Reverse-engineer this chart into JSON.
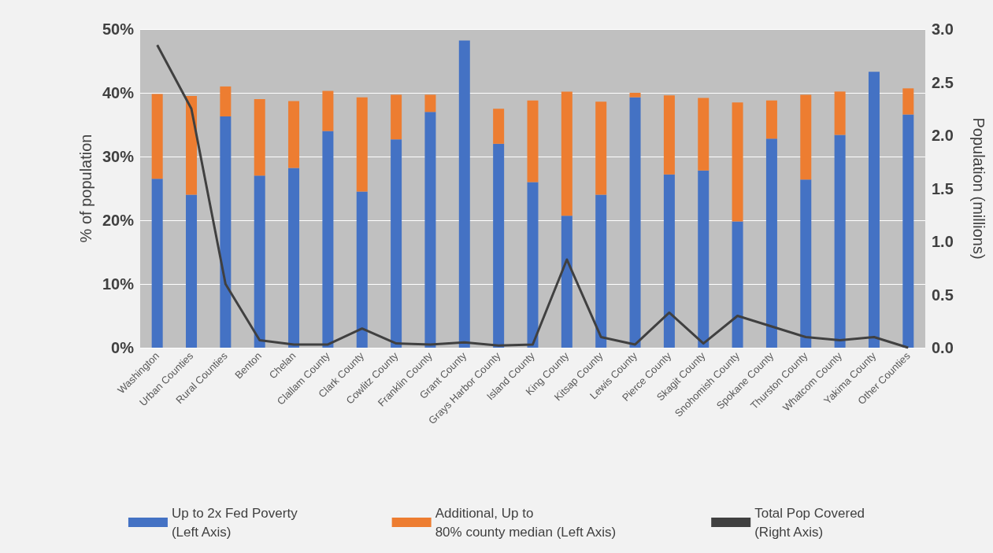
{
  "chart_data": {
    "type": "bar",
    "stacked": true,
    "ylabel": "% of population",
    "y2label": "Population (millions)",
    "categories": [
      "Washington",
      "Urban Counties",
      "Rural Counties",
      "Benton",
      "Chelan",
      "Clallam County",
      "Clark County",
      "Cowlitz County",
      "Franklin County",
      "Grant County",
      "Grays Harbor County",
      "Island County",
      "King County",
      "Kitsap County",
      "Lewis County",
      "Pierce County",
      "Skagit County",
      "Snohomish County",
      "Spokane County",
      "Thurston County",
      "Whatcom County",
      "Yakima County",
      "Other Counties"
    ],
    "series": [
      {
        "name": "Up to 2x Fed Poverty\n(Left Axis)",
        "color": "#4472c4",
        "values": [
          26.5,
          24,
          36.3,
          27,
          28.2,
          34,
          24.5,
          32.7,
          37,
          48.2,
          32,
          26,
          20.7,
          24,
          39.3,
          27.2,
          27.8,
          19.8,
          32.8,
          26.4,
          33.4,
          43.3,
          36.6
        ]
      },
      {
        "name": "Additional, Up to\n80% county median (Left Axis)",
        "color": "#ed7d31",
        "values": [
          13.3,
          15.5,
          4.7,
          12,
          10.5,
          6.3,
          14.8,
          7,
          2.7,
          0,
          5.5,
          12.8,
          19.5,
          14.6,
          0.7,
          12.4,
          11.4,
          18.7,
          6,
          13.3,
          6.8,
          0,
          4.1
        ]
      },
      {
        "name": "Total Pop Covered\n(Right Axis)",
        "type": "line",
        "axis": "y2",
        "color": "#404040",
        "values": [
          2.85,
          2.25,
          0.6,
          0.07,
          0.03,
          0.03,
          0.18,
          0.04,
          0.03,
          0.05,
          0.02,
          0.03,
          0.83,
          0.1,
          0.03,
          0.33,
          0.04,
          0.3,
          0.2,
          0.1,
          0.07,
          0.1,
          0.0
        ]
      }
    ],
    "ylim": [
      0,
      50
    ],
    "yticks": [
      {
        "value": 0,
        "label": "0%"
      },
      {
        "value": 10,
        "label": "10%"
      },
      {
        "value": 20,
        "label": "20%"
      },
      {
        "value": 30,
        "label": "30%"
      },
      {
        "value": 40,
        "label": "40%"
      },
      {
        "value": 50,
        "label": "50%"
      }
    ],
    "y2lim": [
      0,
      3
    ],
    "y2ticks": [
      {
        "value": 0,
        "label": "0.0"
      },
      {
        "value": 0.5,
        "label": "0.5"
      },
      {
        "value": 1,
        "label": "1.0"
      },
      {
        "value": 1.5,
        "label": "1.5"
      },
      {
        "value": 2,
        "label": "2.0"
      },
      {
        "value": 2.5,
        "label": "2.5"
      },
      {
        "value": 3,
        "label": "3.0"
      }
    ],
    "grid": "y",
    "legend": "bottom",
    "marker": "none"
  }
}
